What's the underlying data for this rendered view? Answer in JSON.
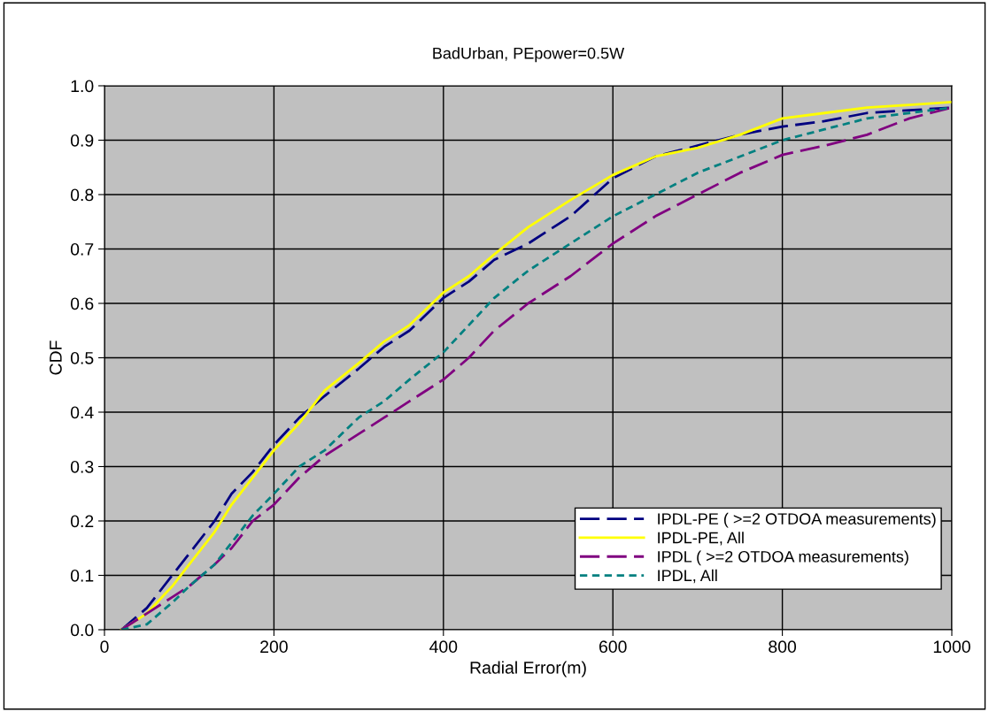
{
  "chart_data": {
    "type": "line",
    "title": "BadUrban, PEpower=0.5W",
    "xlabel": "Radial Error(m)",
    "ylabel": "CDF",
    "xlim": [
      0,
      1000
    ],
    "xticks": [
      0,
      200,
      400,
      600,
      800,
      1000
    ],
    "ylim": [
      0,
      1
    ],
    "yticks": [
      {
        "value": 0,
        "label": "0.0"
      },
      {
        "value": 0.1,
        "label": "0.1"
      },
      {
        "value": 0.2,
        "label": "0.2"
      },
      {
        "value": 0.3,
        "label": "0.3"
      },
      {
        "value": 0.4,
        "label": "0.4"
      },
      {
        "value": 0.5,
        "label": "0.5"
      },
      {
        "value": 0.6,
        "label": "0.6"
      },
      {
        "value": 0.7,
        "label": "0.7"
      },
      {
        "value": 0.8,
        "label": "0.8"
      },
      {
        "value": 0.9,
        "label": "0.9"
      },
      {
        "value": 1,
        "label": "1.0"
      }
    ],
    "grid": true,
    "legend": "bottom right",
    "marker": "none",
    "x": [
      20,
      50,
      80,
      100,
      130,
      150,
      175,
      200,
      230,
      260,
      300,
      330,
      360,
      400,
      430,
      460,
      500,
      550,
      600,
      650,
      700,
      750,
      800,
      850,
      900,
      950,
      1000
    ],
    "series": [
      {
        "name": "IPDL-PE ( >=2 OTDOA measurements)",
        "color": "#000080",
        "line_style": "dashed",
        "values": [
          0,
          0.04,
          0.1,
          0.14,
          0.2,
          0.25,
          0.29,
          0.34,
          0.39,
          0.43,
          0.48,
          0.52,
          0.55,
          0.61,
          0.64,
          0.68,
          0.71,
          0.76,
          0.83,
          0.87,
          0.89,
          0.91,
          0.925,
          0.935,
          0.95,
          0.955,
          0.96
        ]
      },
      {
        "name": "IPDL-PE, All",
        "color": "#ffff00",
        "line_style": "solid",
        "values": [
          0,
          0.03,
          0.08,
          0.12,
          0.18,
          0.23,
          0.28,
          0.33,
          0.38,
          0.44,
          0.49,
          0.53,
          0.56,
          0.62,
          0.65,
          0.69,
          0.74,
          0.79,
          0.836,
          0.87,
          0.886,
          0.91,
          0.94,
          0.95,
          0.96,
          0.965,
          0.97
        ]
      },
      {
        "name": "IPDL ( >=2 OTDOA measurements)",
        "color": "#800080",
        "line_style": "dashed",
        "values": [
          0,
          0.03,
          0.06,
          0.08,
          0.12,
          0.15,
          0.2,
          0.23,
          0.28,
          0.32,
          0.36,
          0.39,
          0.42,
          0.46,
          0.5,
          0.55,
          0.6,
          0.65,
          0.71,
          0.76,
          0.8,
          0.84,
          0.873,
          0.89,
          0.91,
          0.94,
          0.96
        ]
      },
      {
        "name": "IPDL, All",
        "color": "#008080",
        "line_style": "dotted",
        "values": [
          0,
          0.01,
          0.05,
          0.08,
          0.12,
          0.16,
          0.21,
          0.25,
          0.3,
          0.33,
          0.39,
          0.42,
          0.46,
          0.51,
          0.56,
          0.61,
          0.66,
          0.71,
          0.76,
          0.8,
          0.84,
          0.87,
          0.9,
          0.92,
          0.94,
          0.95,
          0.96
        ]
      }
    ]
  }
}
